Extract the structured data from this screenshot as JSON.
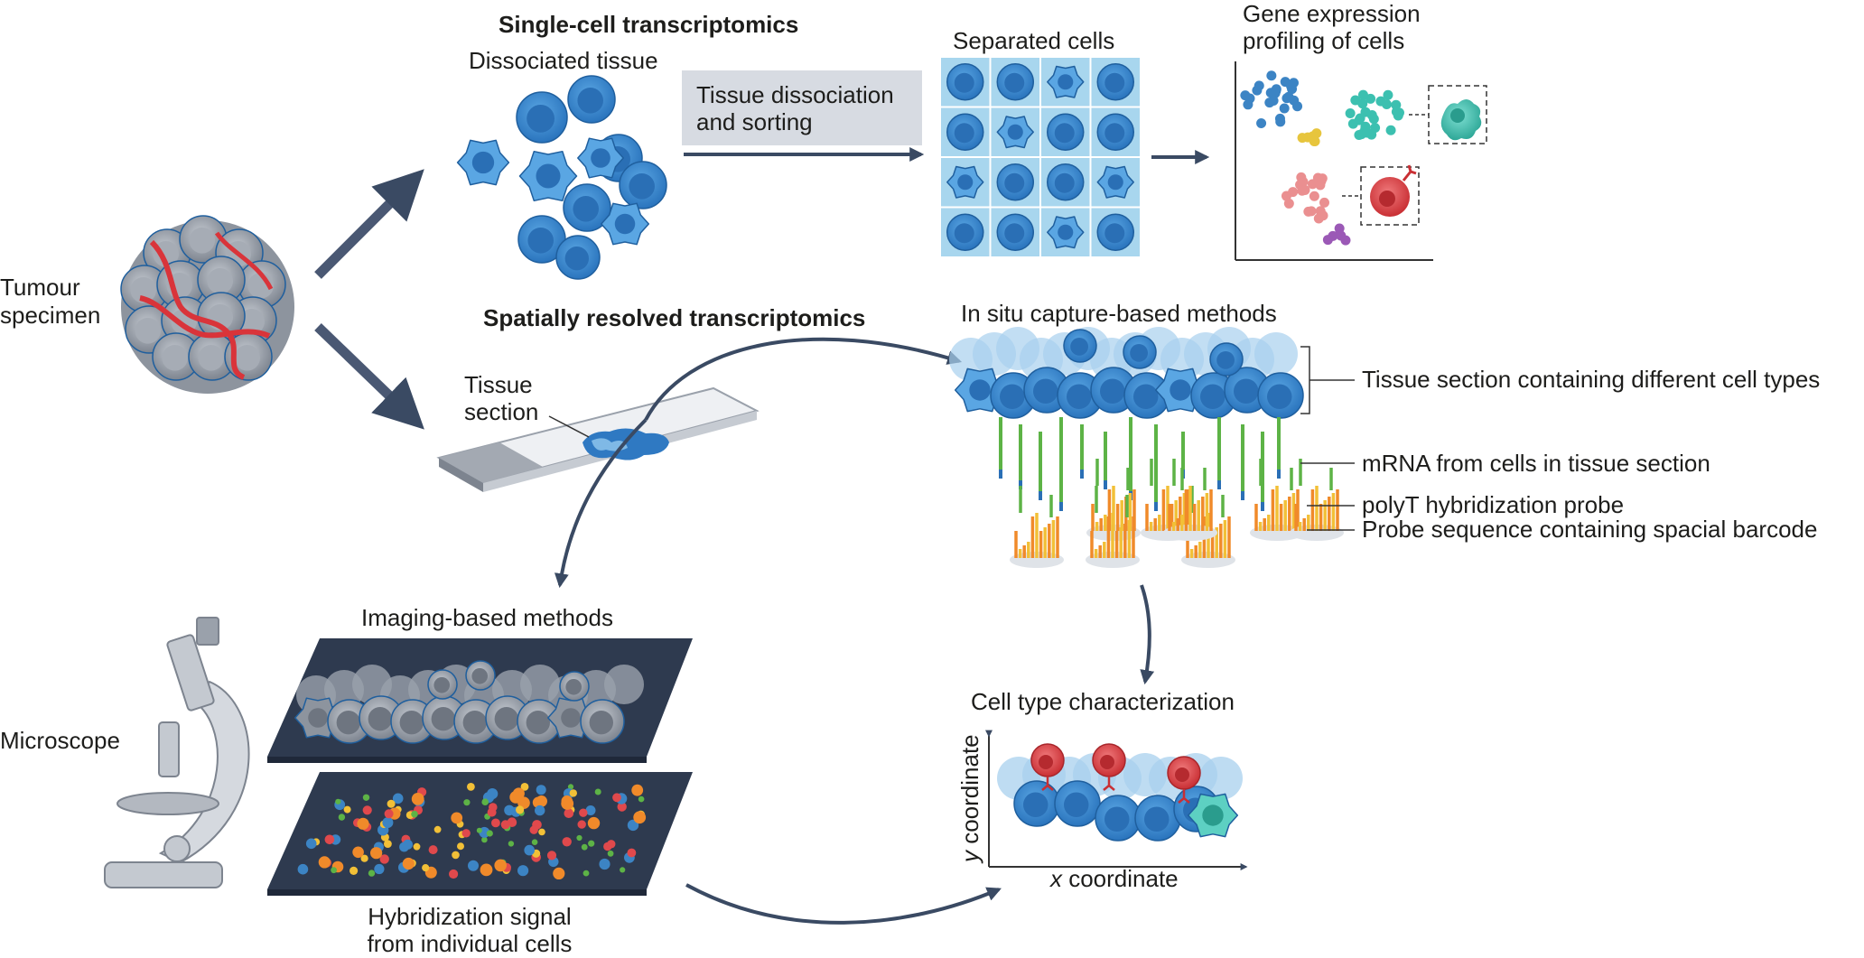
{
  "labels": {
    "single_cell_title": "Single-cell transcriptomics",
    "dissociated_tissue": "Dissociated tissue",
    "dissociation_line1": "Tissue dissociation",
    "dissociation_line2": "and sorting",
    "separated_cells": "Separated cells",
    "gene_expr_line1": "Gene expression",
    "gene_expr_line2": "profiling of cells",
    "tumour_line1": "Tumour",
    "tumour_line2": "specimen",
    "spatial_title": "Spatially resolved transcriptomics",
    "tissue_section_line1": "Tissue",
    "tissue_section_line2": "section",
    "in_situ": "In situ capture-based methods",
    "tissue_section_callout": "Tissue section containing different cell types",
    "mrna_callout": "mRNA from cells in tissue section",
    "polyt_callout": "polyT hybridization probe",
    "probe_callout": "Probe sequence containing spacial barcode",
    "imaging_methods": "Imaging-based methods",
    "microscope": "Microscope",
    "hybrid_line1": "Hybridization signal",
    "hybrid_line2": "from individual cells",
    "cell_type_char": "Cell type characterization",
    "y_axis_italic": "y",
    "y_axis_rest": " coordinate",
    "x_axis_italic": "x",
    "x_axis_rest": " coordinate"
  },
  "colors": {
    "cell_blue": "#3f8fd2",
    "cell_blue_light": "#7fb9e6",
    "arrow": "#3a4a63",
    "slide_dark": "#2e3a4f",
    "tumour_grey": "#9aa1ab",
    "tumour_red": "#d9343a",
    "cluster_blue": "#3c84c4",
    "cluster_teal": "#3cc0b0",
    "cluster_yellow": "#e7c53d",
    "cluster_pink": "#ea8f90",
    "cluster_purple": "#9b59b6",
    "red_cell": "#e0494c",
    "probe_green": "#5db346",
    "probe_orange": "#f08a2a",
    "probe_yellow": "#f2c037"
  }
}
